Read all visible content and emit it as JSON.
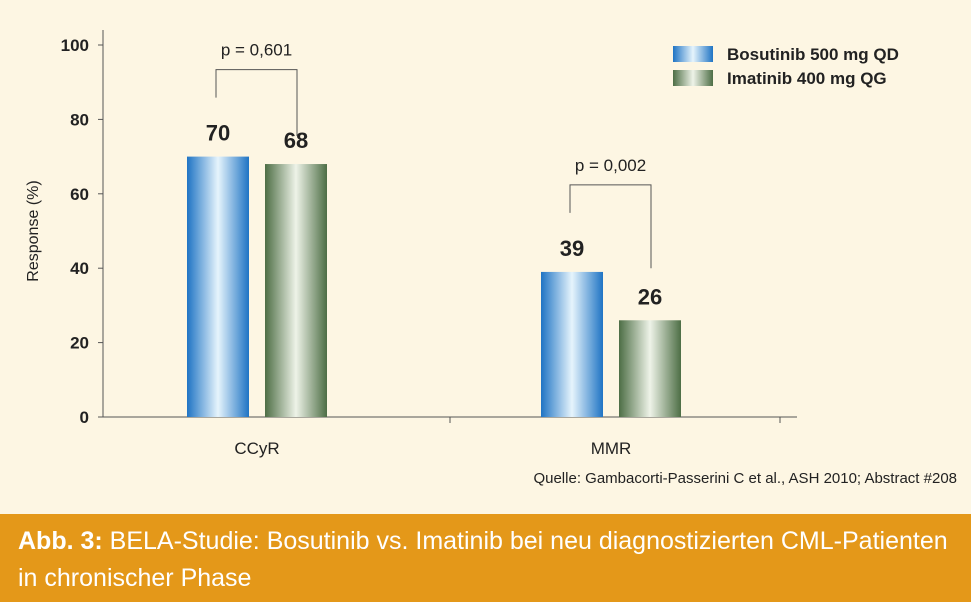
{
  "chart_data": {
    "type": "bar",
    "categories": [
      "CCyR",
      "MMR"
    ],
    "series": [
      {
        "name": "Bosutinib 500 mg QD",
        "values": [
          70,
          39
        ],
        "color": "#3a9ad9"
      },
      {
        "name": "Imatinib 400 mg QG",
        "values": [
          68,
          26
        ],
        "color": "#6a8a62"
      }
    ],
    "data_labels": [
      "70",
      "68",
      "39",
      "26"
    ],
    "ylabel": "Response (%)",
    "xlabel": "",
    "ylim": [
      0,
      100
    ],
    "yticks": [
      "0",
      "20",
      "40",
      "60",
      "80",
      "100"
    ],
    "grid": false,
    "legend_position": "top-right",
    "annotations": [
      {
        "category": "CCyR",
        "text": "p = 0,601"
      },
      {
        "category": "MMR",
        "text": "p = 0,002"
      }
    ]
  },
  "source": "Quelle: Gambacorti-Passerini C et al., ASH 2010; Abstract #208",
  "caption": {
    "label": "Abb. 3:",
    "text": " BELA-Studie: Bosutinib vs. Imatinib bei neu diagnostizierten CML-Patienten in chronischer Phase"
  },
  "colors": {
    "background": "#fdf6e3",
    "caption_background": "#e49819",
    "caption_text": "#ffffff"
  }
}
